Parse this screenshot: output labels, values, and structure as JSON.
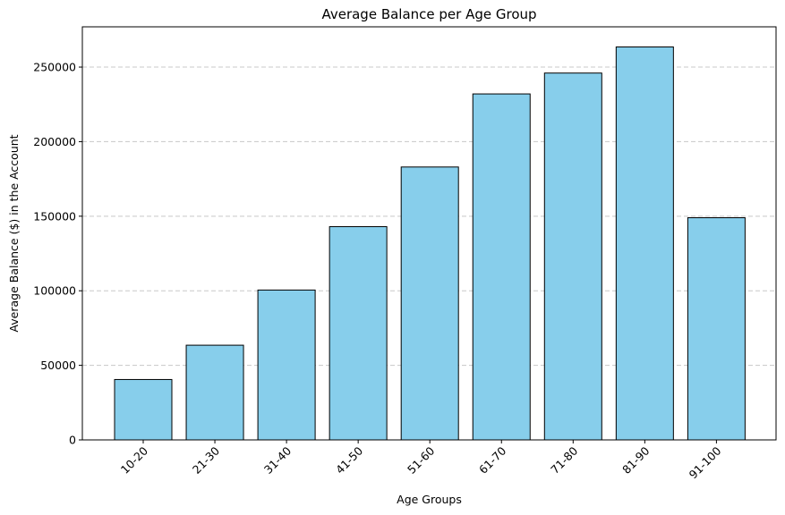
{
  "chart_data": {
    "type": "bar",
    "title": "Average Balance per Age Group",
    "xlabel": "Age Groups",
    "ylabel": "Average Balance ($) in the Account",
    "categories": [
      "10-20",
      "21-30",
      "31-40",
      "41-50",
      "51-60",
      "61-70",
      "71-80",
      "81-90",
      "91-100"
    ],
    "values": [
      40500,
      63500,
      100500,
      143000,
      183000,
      232000,
      246000,
      263500,
      149000
    ],
    "ylim": [
      0,
      277000
    ],
    "yticks": [
      0,
      50000,
      100000,
      150000,
      200000,
      250000
    ],
    "ytick_labels": [
      "0",
      "50000",
      "100000",
      "150000",
      "200000",
      "250000"
    ],
    "grid": "y-dashed",
    "x_tick_rotation_deg": 45,
    "colors": {
      "bar_fill": "#87ceeb",
      "bar_edge": "#000000",
      "grid": "#c8c8c8"
    }
  }
}
